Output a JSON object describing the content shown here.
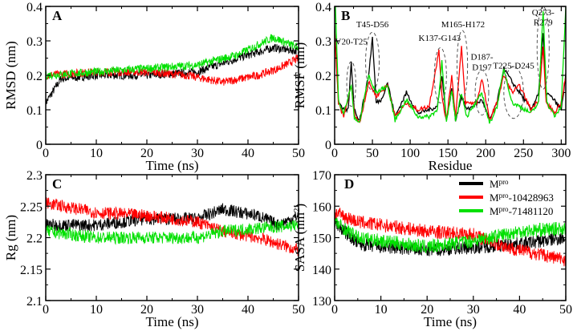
{
  "chart_data": [
    {
      "id": "A",
      "type": "line",
      "panel_label": "A",
      "xlabel": "Time (ns)",
      "ylabel": "RMSD (nm)",
      "xlim": [
        0,
        50
      ],
      "ylim": [
        0,
        0.4
      ],
      "xticks": [
        0,
        10,
        20,
        30,
        40,
        50
      ],
      "yticks": [
        0,
        0.1,
        0.2,
        0.3,
        0.4
      ],
      "ytick_labels": [
        "0",
        "0.1",
        "0.2",
        "0.3",
        "0.4"
      ],
      "noise": 0.012,
      "series": [
        {
          "name": "Mpro",
          "color": "#000000",
          "trend": [
            [
              0,
              0.12
            ],
            [
              3,
              0.19
            ],
            [
              10,
              0.2
            ],
            [
              20,
              0.2
            ],
            [
              30,
              0.21
            ],
            [
              38,
              0.25
            ],
            [
              45,
              0.28
            ],
            [
              50,
              0.27
            ]
          ]
        },
        {
          "name": "Mpro-10428963",
          "color": "#ff0000",
          "trend": [
            [
              0,
              0.2
            ],
            [
              10,
              0.21
            ],
            [
              20,
              0.21
            ],
            [
              28,
              0.2
            ],
            [
              35,
              0.18
            ],
            [
              42,
              0.2
            ],
            [
              46,
              0.22
            ],
            [
              50,
              0.25
            ]
          ]
        },
        {
          "name": "Mpro-71481120",
          "color": "#00e000",
          "trend": [
            [
              0,
              0.2
            ],
            [
              10,
              0.21
            ],
            [
              20,
              0.22
            ],
            [
              30,
              0.23
            ],
            [
              38,
              0.26
            ],
            [
              45,
              0.31
            ],
            [
              50,
              0.28
            ]
          ]
        }
      ]
    },
    {
      "id": "B",
      "type": "line",
      "panel_label": "B",
      "xlabel": "Residue",
      "ylabel": "RMSF (nm)",
      "xlim": [
        0,
        306
      ],
      "ylim": [
        0,
        0.4
      ],
      "xticks": [
        0,
        50,
        100,
        150,
        200,
        250,
        300
      ],
      "yticks": [
        0,
        0.1,
        0.2,
        0.3,
        0.4
      ],
      "ytick_labels": [
        "0",
        "0.1",
        "0.2",
        "0.3",
        "0.4"
      ],
      "noise": 0.006,
      "series": [
        {
          "name": "Mpro",
          "color": "#000000",
          "trend": [
            [
              1,
              0.3
            ],
            [
              5,
              0.13
            ],
            [
              10,
              0.1
            ],
            [
              18,
              0.1
            ],
            [
              22,
              0.24
            ],
            [
              26,
              0.1
            ],
            [
              33,
              0.07
            ],
            [
              45,
              0.2
            ],
            [
              50,
              0.31
            ],
            [
              55,
              0.12
            ],
            [
              62,
              0.13
            ],
            [
              70,
              0.18
            ],
            [
              80,
              0.08
            ],
            [
              95,
              0.15
            ],
            [
              110,
              0.09
            ],
            [
              125,
              0.1
            ],
            [
              136,
              0.11
            ],
            [
              142,
              0.2
            ],
            [
              148,
              0.07
            ],
            [
              155,
              0.16
            ],
            [
              160,
              0.07
            ],
            [
              168,
              0.14
            ],
            [
              175,
              0.1
            ],
            [
              190,
              0.12
            ],
            [
              195,
              0.13
            ],
            [
              205,
              0.07
            ],
            [
              215,
              0.12
            ],
            [
              224,
              0.22
            ],
            [
              235,
              0.18
            ],
            [
              245,
              0.15
            ],
            [
              260,
              0.1
            ],
            [
              270,
              0.15
            ],
            [
              276,
              0.32
            ],
            [
              280,
              0.15
            ],
            [
              290,
              0.13
            ],
            [
              300,
              0.1
            ],
            [
              306,
              0.2
            ]
          ]
        },
        {
          "name": "Mpro-10428963",
          "color": "#ff0000",
          "trend": [
            [
              1,
              0.28
            ],
            [
              5,
              0.12
            ],
            [
              12,
              0.08
            ],
            [
              22,
              0.17
            ],
            [
              26,
              0.09
            ],
            [
              33,
              0.06
            ],
            [
              45,
              0.18
            ],
            [
              50,
              0.16
            ],
            [
              55,
              0.14
            ],
            [
              70,
              0.17
            ],
            [
              80,
              0.08
            ],
            [
              95,
              0.12
            ],
            [
              110,
              0.1
            ],
            [
              125,
              0.11
            ],
            [
              138,
              0.27
            ],
            [
              143,
              0.12
            ],
            [
              148,
              0.07
            ],
            [
              155,
              0.2
            ],
            [
              160,
              0.08
            ],
            [
              168,
              0.28
            ],
            [
              173,
              0.12
            ],
            [
              188,
              0.12
            ],
            [
              195,
              0.19
            ],
            [
              205,
              0.07
            ],
            [
              215,
              0.12
            ],
            [
              224,
              0.2
            ],
            [
              235,
              0.15
            ],
            [
              245,
              0.17
            ],
            [
              260,
              0.1
            ],
            [
              270,
              0.13
            ],
            [
              276,
              0.28
            ],
            [
              280,
              0.12
            ],
            [
              292,
              0.09
            ],
            [
              300,
              0.12
            ],
            [
              306,
              0.2
            ]
          ]
        },
        {
          "name": "Mpro-71481120",
          "color": "#00e000",
          "trend": [
            [
              1,
              0.4
            ],
            [
              5,
              0.13
            ],
            [
              12,
              0.09
            ],
            [
              22,
              0.17
            ],
            [
              26,
              0.08
            ],
            [
              33,
              0.06
            ],
            [
              45,
              0.2
            ],
            [
              50,
              0.17
            ],
            [
              55,
              0.15
            ],
            [
              70,
              0.17
            ],
            [
              80,
              0.07
            ],
            [
              95,
              0.13
            ],
            [
              110,
              0.08
            ],
            [
              125,
              0.08
            ],
            [
              136,
              0.1
            ],
            [
              142,
              0.24
            ],
            [
              148,
              0.06
            ],
            [
              155,
              0.16
            ],
            [
              160,
              0.07
            ],
            [
              168,
              0.15
            ],
            [
              175,
              0.08
            ],
            [
              190,
              0.13
            ],
            [
              195,
              0.15
            ],
            [
              205,
              0.06
            ],
            [
              215,
              0.11
            ],
            [
              224,
              0.22
            ],
            [
              235,
              0.12
            ],
            [
              245,
              0.11
            ],
            [
              260,
              0.09
            ],
            [
              270,
              0.12
            ],
            [
              276,
              0.39
            ],
            [
              281,
              0.12
            ],
            [
              292,
              0.08
            ],
            [
              300,
              0.11
            ],
            [
              306,
              0.4
            ]
          ]
        }
      ],
      "annotations": [
        {
          "text": "V20-T25",
          "x": 22,
          "y": 0.29,
          "ex": 22,
          "ey": 0.175,
          "rx": 6,
          "ry": 0.065
        },
        {
          "text": "T45-D56",
          "x": 50,
          "y": 0.34,
          "ex": 50,
          "ey": 0.24,
          "rx": 9,
          "ry": 0.085
        },
        {
          "text": "K137-G143",
          "x": 139,
          "y": 0.3,
          "ex": 140,
          "ey": 0.2,
          "rx": 8,
          "ry": 0.08
        },
        {
          "text": "M165-H172",
          "x": 170,
          "y": 0.34,
          "ex": 169,
          "ey": 0.23,
          "rx": 7,
          "ry": 0.1
        },
        {
          "text": "D187-",
          "x": 195,
          "y": 0.245,
          "ex": 195,
          "ey": 0.15,
          "rx": 9,
          "ry": 0.065
        },
        {
          "text": "D197",
          "x": 195,
          "y": 0.215
        },
        {
          "text": "T225-D245",
          "x": 237,
          "y": 0.22,
          "ex": 237,
          "ey": 0.15,
          "rx": 13,
          "ry": 0.075
        },
        {
          "text": "Q273-",
          "x": 276,
          "y": 0.375,
          "ex": 276,
          "ey": 0.28,
          "rx": 8,
          "ry": 0.12
        },
        {
          "text": "R279",
          "x": 276,
          "y": 0.345
        }
      ]
    },
    {
      "id": "C",
      "type": "line",
      "panel_label": "C",
      "xlabel": "Time (ns)",
      "ylabel": "Rg (nm)",
      "xlim": [
        0,
        50
      ],
      "ylim": [
        2.1,
        2.3
      ],
      "xticks": [
        0,
        10,
        20,
        30,
        40,
        50
      ],
      "yticks": [
        2.1,
        2.15,
        2.2,
        2.25,
        2.3
      ],
      "ytick_labels": [
        "2.1",
        "2.15",
        "2.2",
        "2.25",
        "2.3"
      ],
      "noise": 0.01,
      "series": [
        {
          "name": "Mpro",
          "color": "#000000",
          "trend": [
            [
              0,
              2.22
            ],
            [
              10,
              2.22
            ],
            [
              20,
              2.23
            ],
            [
              30,
              2.23
            ],
            [
              35,
              2.245
            ],
            [
              42,
              2.235
            ],
            [
              46,
              2.22
            ],
            [
              50,
              2.235
            ]
          ]
        },
        {
          "name": "Mpro-10428963",
          "color": "#ff0000",
          "trend": [
            [
              0,
              2.255
            ],
            [
              10,
              2.24
            ],
            [
              20,
              2.235
            ],
            [
              30,
              2.225
            ],
            [
              35,
              2.21
            ],
            [
              42,
              2.2
            ],
            [
              50,
              2.18
            ]
          ]
        },
        {
          "name": "Mpro-71481120",
          "color": "#00e000",
          "trend": [
            [
              0,
              2.21
            ],
            [
              10,
              2.2
            ],
            [
              20,
              2.2
            ],
            [
              30,
              2.2
            ],
            [
              35,
              2.21
            ],
            [
              42,
              2.215
            ],
            [
              50,
              2.22
            ]
          ]
        }
      ]
    },
    {
      "id": "D",
      "type": "line",
      "panel_label": "D",
      "xlabel": "Time (ns)",
      "ylabel": "SASA (nm2)",
      "xlim": [
        0,
        50
      ],
      "ylim": [
        130,
        170
      ],
      "xticks": [
        0,
        10,
        20,
        30,
        40,
        50
      ],
      "yticks": [
        130,
        140,
        150,
        160,
        170
      ],
      "ytick_labels": [
        "130",
        "140",
        "150",
        "160",
        "170"
      ],
      "noise": 2.2,
      "series": [
        {
          "name": "Mpro",
          "color": "#000000",
          "trend": [
            [
              0,
              155
            ],
            [
              5,
              148
            ],
            [
              10,
              147
            ],
            [
              20,
              146
            ],
            [
              30,
              147
            ],
            [
              40,
              148
            ],
            [
              50,
              150
            ]
          ]
        },
        {
          "name": "Mpro-10428963",
          "color": "#ff0000",
          "trend": [
            [
              0,
              158
            ],
            [
              5,
              155
            ],
            [
              10,
              154
            ],
            [
              20,
              152
            ],
            [
              30,
              151
            ],
            [
              35,
              148
            ],
            [
              40,
              146
            ],
            [
              50,
              143
            ]
          ]
        },
        {
          "name": "Mpro-71481120",
          "color": "#00e000",
          "trend": [
            [
              0,
              155
            ],
            [
              5,
              150
            ],
            [
              10,
              149
            ],
            [
              20,
              147
            ],
            [
              30,
              149
            ],
            [
              40,
              152
            ],
            [
              50,
              153
            ]
          ]
        }
      ]
    }
  ],
  "legend": {
    "placement": "top-right of panel D",
    "items": [
      {
        "base": "M",
        "sup": "pro",
        "suffix": "",
        "color": "#000000"
      },
      {
        "base": "M",
        "sup": "pro",
        "suffix": "-10428963",
        "color": "#ff0000"
      },
      {
        "base": "M",
        "sup": "pro",
        "suffix": "-71481120",
        "color": "#00e000"
      }
    ]
  }
}
